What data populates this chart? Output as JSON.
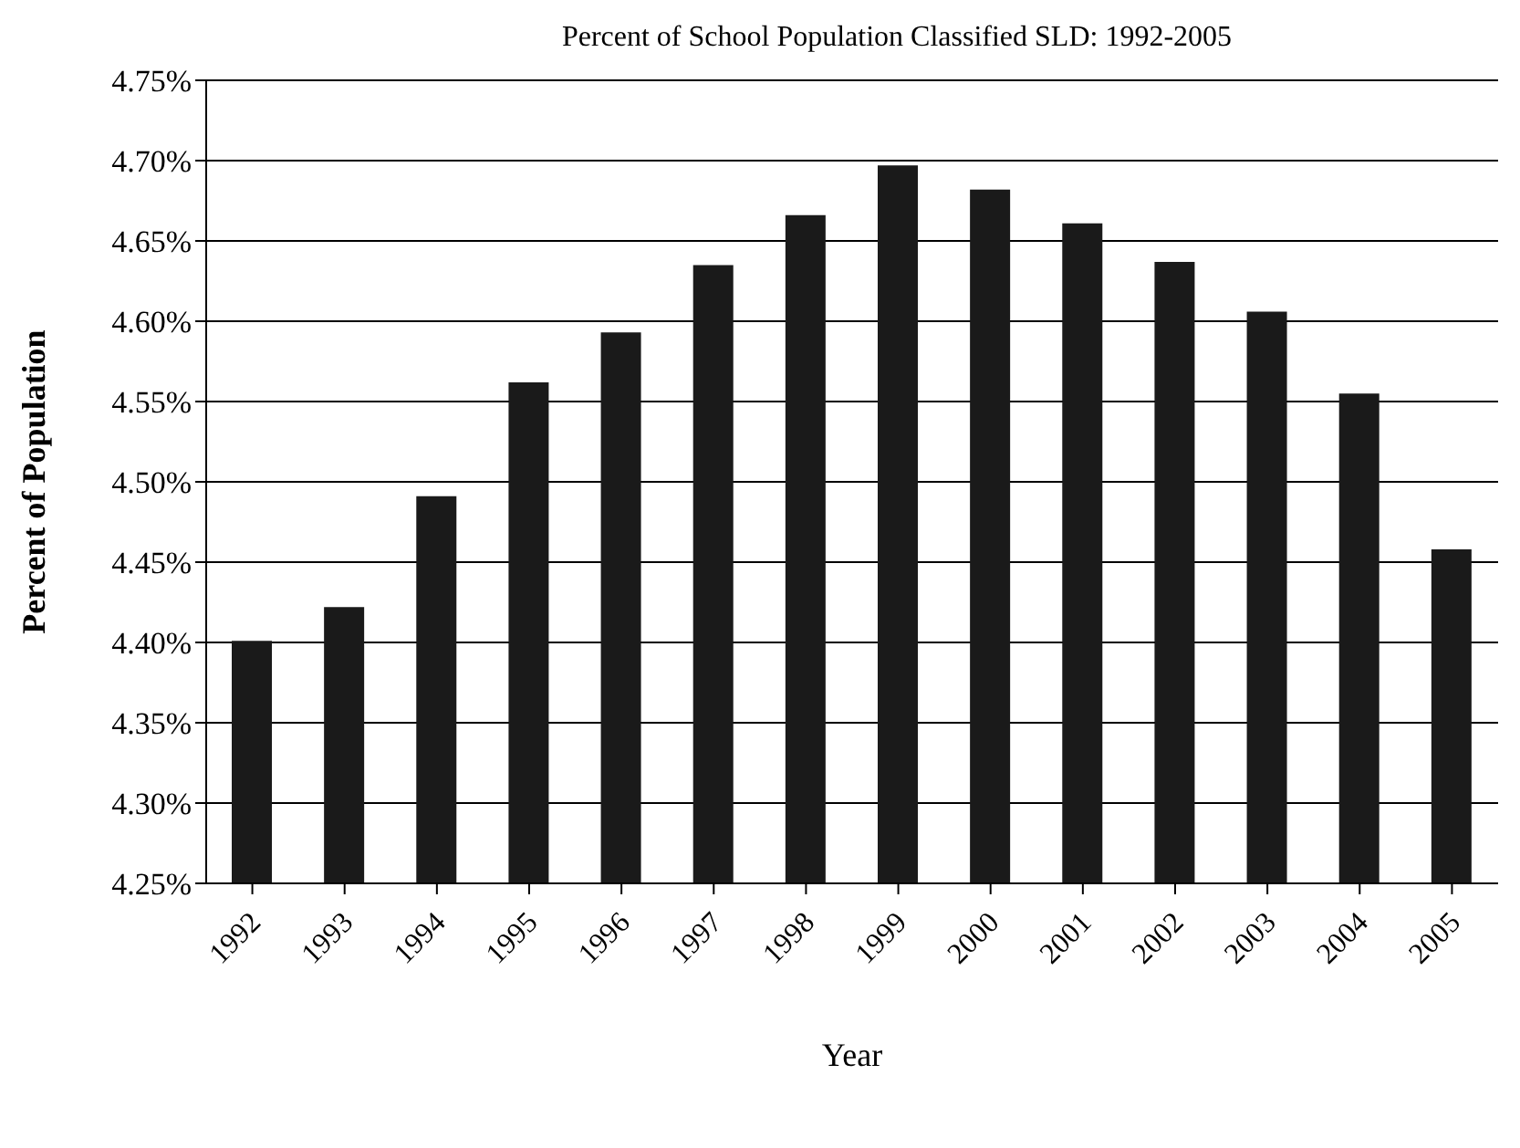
{
  "chart_data": {
    "type": "bar",
    "title": "Percent of School Population Classified SLD: 1992-2005",
    "xlabel": "Year",
    "ylabel": "Percent of Population",
    "categories": [
      "1992",
      "1993",
      "1994",
      "1995",
      "1996",
      "1997",
      "1998",
      "1999",
      "2000",
      "2001",
      "2002",
      "2003",
      "2004",
      "2005"
    ],
    "values": [
      4.401,
      4.422,
      4.491,
      4.562,
      4.593,
      4.635,
      4.666,
      4.697,
      4.682,
      4.661,
      4.637,
      4.606,
      4.555,
      4.458
    ],
    "color": "#1a1a1a",
    "ylim": [
      4.25,
      4.75
    ],
    "yticks": [
      {
        "value": 4.25,
        "label": "4.25%"
      },
      {
        "value": 4.3,
        "label": "4.30%"
      },
      {
        "value": 4.35,
        "label": "4.35%"
      },
      {
        "value": 4.4,
        "label": "4.40%"
      },
      {
        "value": 4.45,
        "label": "4.45%"
      },
      {
        "value": 4.5,
        "label": "4.50%"
      },
      {
        "value": 4.55,
        "label": "4.55%"
      },
      {
        "value": 4.6,
        "label": "4.60%"
      },
      {
        "value": 4.65,
        "label": "4.65%"
      },
      {
        "value": 4.7,
        "label": "4.70%"
      },
      {
        "value": 4.75,
        "label": "4.75%"
      }
    ],
    "grid": "y"
  }
}
